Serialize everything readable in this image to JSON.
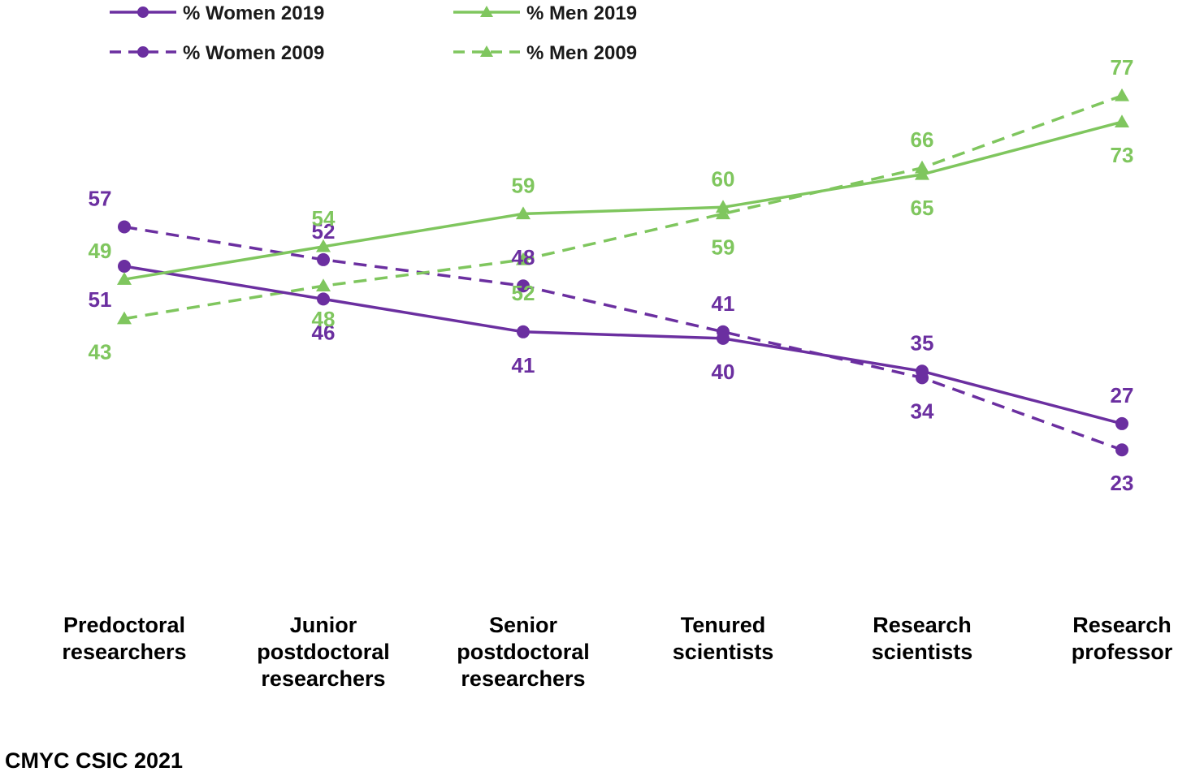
{
  "chart_data": {
    "type": "line",
    "title": "",
    "xlabel": "",
    "ylabel": "",
    "grid": false,
    "legend_position": "top",
    "categories": [
      [
        "Predoctoral",
        "researchers"
      ],
      [
        "Junior",
        "postdoctoral",
        "researchers"
      ],
      [
        "Senior",
        "postdoctoral",
        "researchers"
      ],
      [
        "Tenured",
        "scientists"
      ],
      [
        "Research",
        "scientists"
      ],
      [
        "Research",
        "professor"
      ]
    ],
    "series": [
      {
        "name": "% Women 2019",
        "values": [
          51,
          46,
          41,
          40,
          35,
          27
        ],
        "color": "#6b2fa0",
        "dashed": false,
        "marker": "circle"
      },
      {
        "name": "% Men 2019",
        "values": [
          49,
          54,
          59,
          60,
          65,
          73
        ],
        "color": "#7fc65e",
        "dashed": false,
        "marker": "triangle"
      },
      {
        "name": "% Women 2009",
        "values": [
          57,
          52,
          48,
          41,
          34,
          23
        ],
        "color": "#6b2fa0",
        "dashed": true,
        "marker": "circle"
      },
      {
        "name": "% Men 2009",
        "values": [
          43,
          48,
          52,
          59,
          66,
          77
        ],
        "color": "#7fc65e",
        "dashed": true,
        "marker": "triangle"
      }
    ]
  },
  "source": "CMYC CSIC 2021"
}
